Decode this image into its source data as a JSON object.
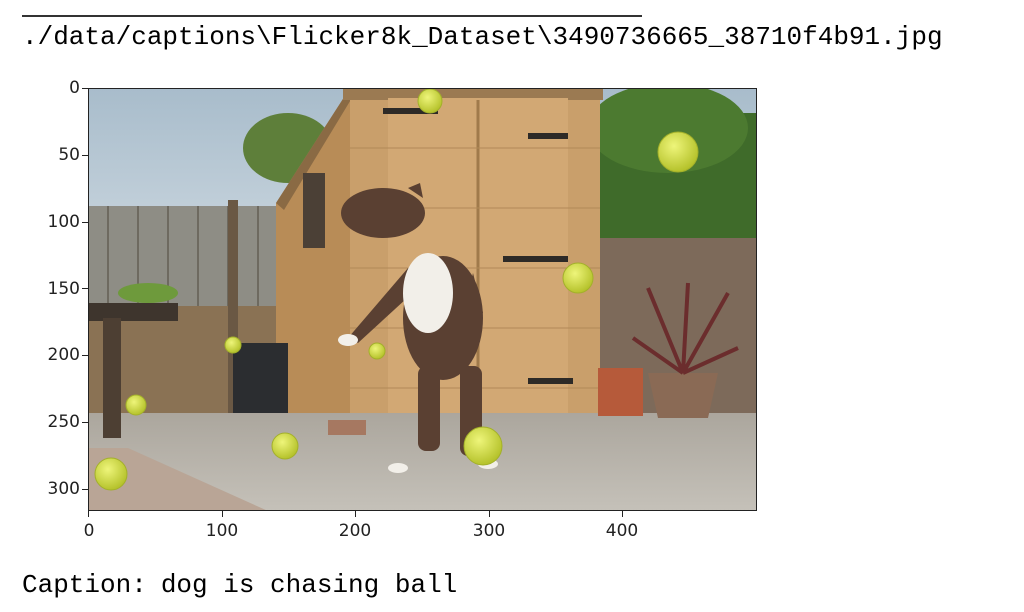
{
  "output": {
    "file_path": "./data/captions\\Flicker8k_Dataset\\3490736665_38710f4b91.jpg",
    "caption_label": "Caption:",
    "caption_text": "dog is chasing ball"
  },
  "axes": {
    "x_ticks": [
      "0",
      "100",
      "200",
      "300",
      "400"
    ],
    "y_ticks": [
      "0",
      "50",
      "100",
      "150",
      "200",
      "250",
      "300"
    ],
    "x_range": [
      0,
      500
    ],
    "y_range": [
      0,
      316
    ]
  },
  "image_scene": {
    "subject": "brindle-and-white dog jumping among tennis balls in a backyard in front of a wooden shed",
    "colors": {
      "sky": "#b9c9d6",
      "shed": "#c99f6b",
      "ground": "#b7b2a8",
      "ball": "#d9e64a",
      "dog": "#5a4032"
    }
  }
}
